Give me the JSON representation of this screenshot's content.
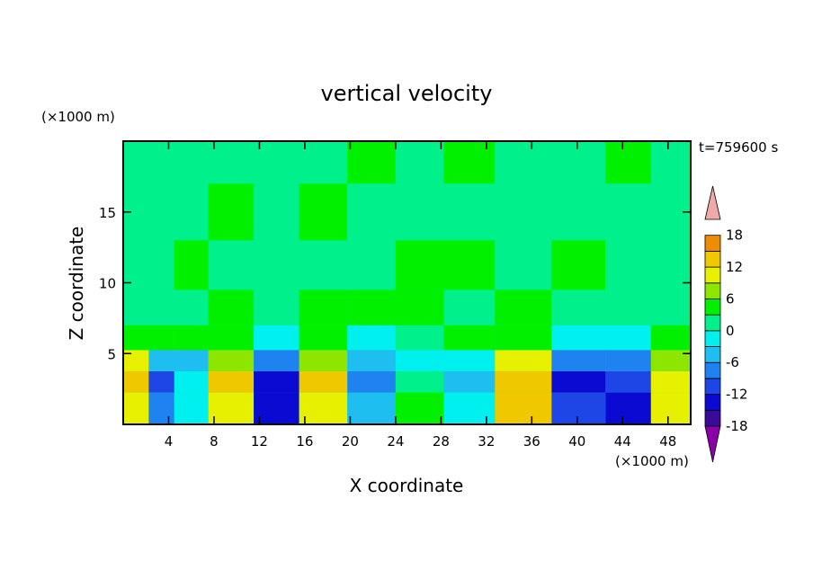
{
  "chart_data": {
    "type": "heatmap",
    "title": "vertical velocity",
    "xlabel": "X coordinate",
    "ylabel": "Z coordinate",
    "x_unit": "(×1000 m)",
    "y_unit": "(×1000 m)",
    "time_label": "t=759600 s",
    "xlim": [
      0,
      50
    ],
    "ylim": [
      0,
      20
    ],
    "x_ticks": [
      4,
      8,
      12,
      16,
      20,
      24,
      28,
      32,
      36,
      40,
      44,
      48
    ],
    "y_ticks": [
      5,
      10,
      15
    ],
    "colorbar": {
      "levels": [
        -21,
        -18,
        -15,
        -12,
        -9,
        -6,
        -3,
        0,
        3,
        6,
        9,
        12,
        15,
        18,
        21
      ],
      "tick_values": [
        18,
        12,
        6,
        0,
        -6,
        -12,
        -18
      ],
      "colors": [
        "#7a007a",
        "#3a0a9a",
        "#0a0ad2",
        "#1e46e6",
        "#1e82f0",
        "#1ebef0",
        "#00f0f0",
        "#00f08c",
        "#00f000",
        "#8ce600",
        "#e6f000",
        "#f0c800",
        "#f08c00",
        "#f05000",
        "#e61414",
        "#f0a8a8"
      ],
      "under_color": "#8a00a8",
      "over_color": "#f0a8a8"
    },
    "cells": [
      {
        "x": 1,
        "values": [
          9,
          12,
          9,
          3,
          0,
          0,
          0,
          0
        ]
      },
      {
        "x": 3.5,
        "values": [
          -9,
          -12,
          -6,
          3,
          0,
          0,
          0,
          0
        ]
      },
      {
        "x": 5.5,
        "values": [
          -3,
          -3,
          -6,
          3,
          0,
          3,
          0,
          0
        ]
      },
      {
        "x": 9.5,
        "values": [
          9,
          12,
          6,
          3,
          3,
          0,
          3,
          0
        ]
      },
      {
        "x": 13.5,
        "values": [
          -15,
          -15,
          -9,
          -3,
          0,
          0,
          0,
          0
        ]
      },
      {
        "x": 17.5,
        "values": [
          9,
          12,
          6,
          3,
          3,
          0,
          3,
          0
        ]
      },
      {
        "x": 22,
        "values": [
          -6,
          -9,
          -6,
          -3,
          3,
          0,
          0,
          3
        ]
      },
      {
        "x": 26,
        "values": [
          3,
          0,
          -3,
          0,
          3,
          3,
          0,
          0
        ]
      },
      {
        "x": 30.5,
        "values": [
          -3,
          -6,
          -3,
          3,
          0,
          3,
          0,
          3
        ]
      },
      {
        "x": 35,
        "values": [
          12,
          12,
          9,
          3,
          3,
          0,
          0,
          0
        ]
      },
      {
        "x": 40.5,
        "values": [
          -12,
          -15,
          -9,
          -3,
          0,
          3,
          0,
          0
        ]
      },
      {
        "x": 44.5,
        "values": [
          -15,
          -12,
          -9,
          -3,
          0,
          0,
          0,
          3
        ]
      },
      {
        "x": 48.5,
        "values": [
          9,
          9,
          6,
          3,
          0,
          0,
          0,
          0
        ]
      }
    ],
    "z_levels": [
      1.5,
      3,
      4.5,
      6,
      8,
      11,
      15,
      19
    ]
  }
}
